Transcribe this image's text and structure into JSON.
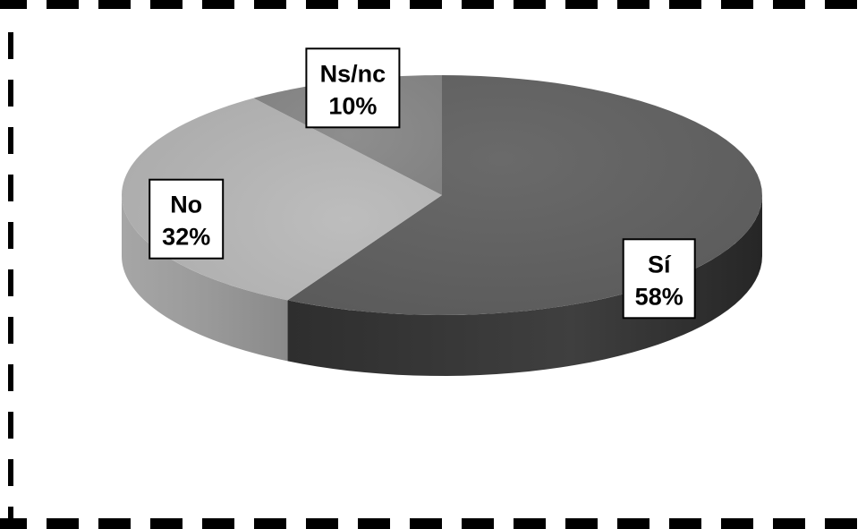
{
  "chart_data": {
    "type": "pie",
    "title": "",
    "categories": [
      "Sí",
      "No",
      "Ns/nc"
    ],
    "values": [
      58,
      32,
      10
    ],
    "value_labels": [
      "58%",
      "32%",
      "10%"
    ],
    "colors": {
      "Sí": "#5f5f5f",
      "No": "#b2b2b2",
      "Ns/nc": "#878787"
    },
    "style": "3d-tilted",
    "legend": "none",
    "data_labels": "callout-boxes"
  },
  "frame": {
    "style": "dashed-border",
    "color": "#000000"
  }
}
